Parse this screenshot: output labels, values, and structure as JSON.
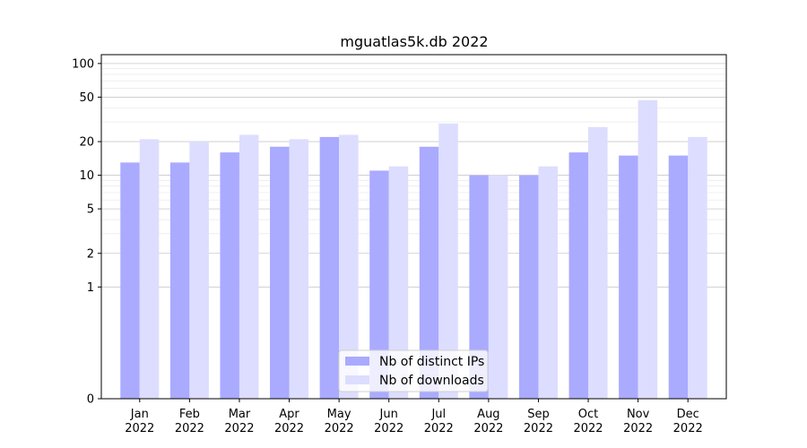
{
  "chart_data": {
    "type": "bar",
    "title": "mguatlas5k.db 2022",
    "xlabel": "",
    "ylabel": "",
    "y_scale": "symlog",
    "ylim": [
      0,
      120
    ],
    "yticks": [
      0,
      1,
      2,
      5,
      10,
      20,
      50,
      100
    ],
    "grid": true,
    "legend_position": "bottom-center",
    "categories": [
      [
        "Jan",
        "2022"
      ],
      [
        "Feb",
        "2022"
      ],
      [
        "Mar",
        "2022"
      ],
      [
        "Apr",
        "2022"
      ],
      [
        "May",
        "2022"
      ],
      [
        "Jun",
        "2022"
      ],
      [
        "Jul",
        "2022"
      ],
      [
        "Aug",
        "2022"
      ],
      [
        "Sep",
        "2022"
      ],
      [
        "Oct",
        "2022"
      ],
      [
        "Nov",
        "2022"
      ],
      [
        "Dec",
        "2022"
      ]
    ],
    "series": [
      {
        "name": "Nb of distinct IPs",
        "color": "#aaaaff",
        "values": [
          13,
          13,
          16,
          18,
          22,
          11,
          18,
          10,
          10,
          16,
          15,
          15
        ]
      },
      {
        "name": "Nb of downloads",
        "color": "#ddddff",
        "values": [
          21,
          20,
          23,
          21,
          23,
          12,
          29,
          10,
          12,
          27,
          47,
          22
        ]
      }
    ]
  }
}
